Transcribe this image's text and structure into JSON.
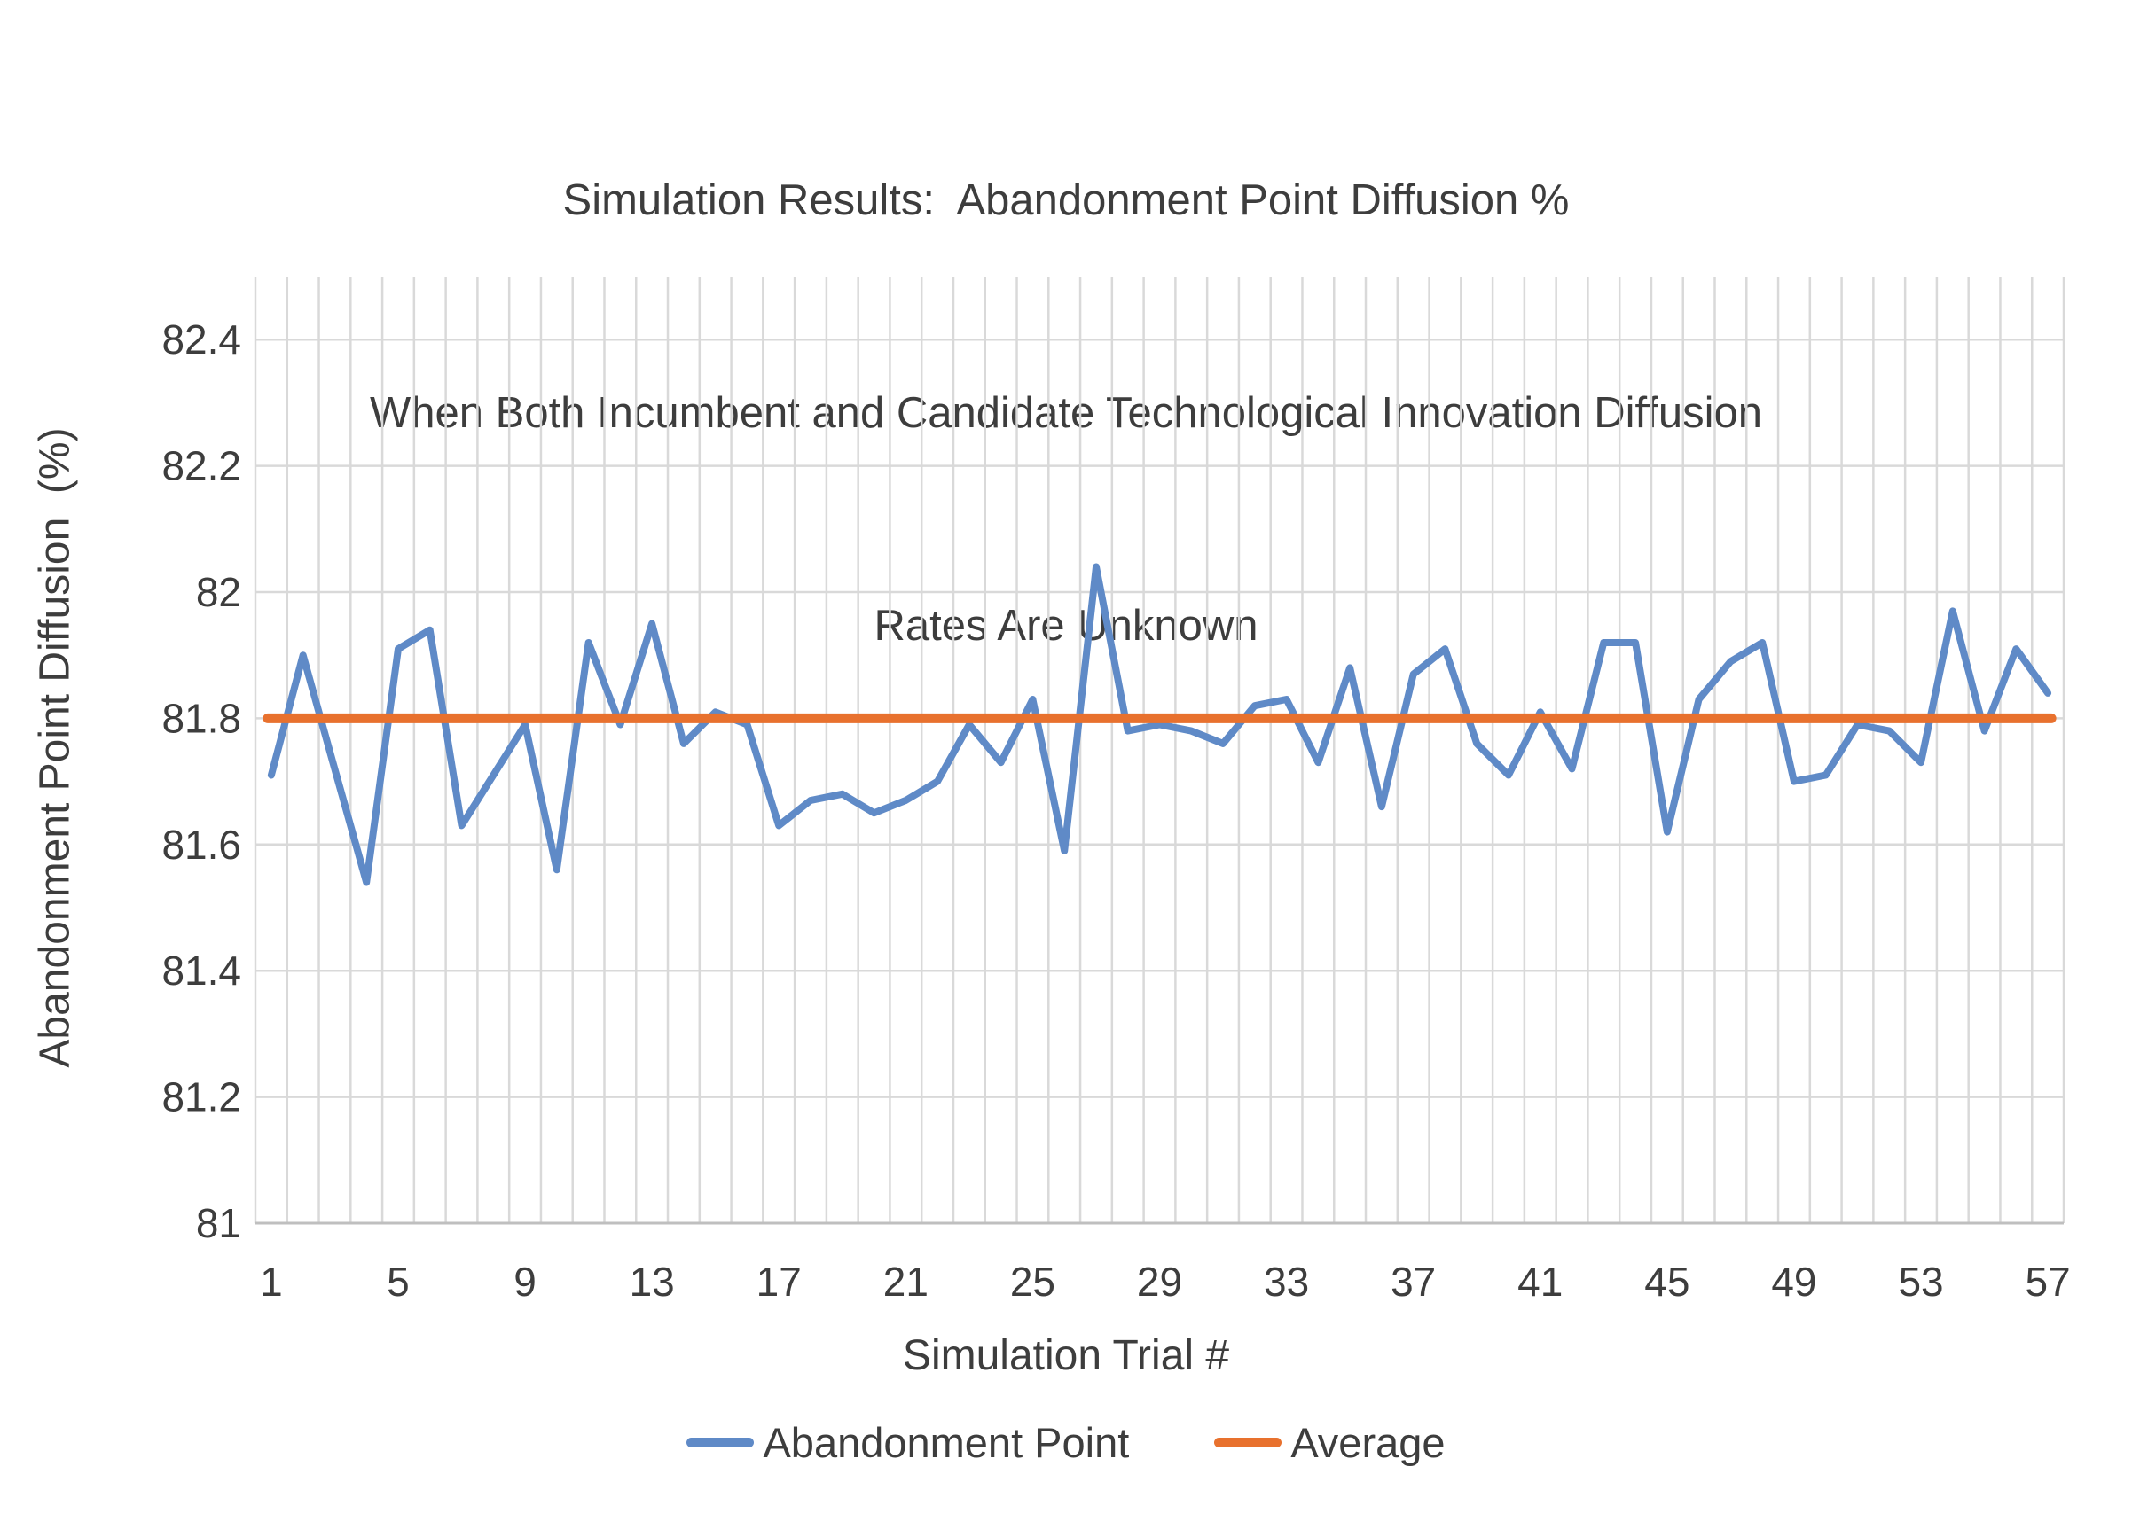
{
  "title_lines": [
    "Simulation Results:  Abandonment Point Diffusion %",
    "When Both Incumbent and Candidate Technological Innovation Diffusion",
    "Rates Are Unknown"
  ],
  "axis_titles": {
    "x": "Simulation Trial #",
    "y": "Abandonment Point Diffusion  (%)"
  },
  "legend": {
    "series1_label": "Abandonment Point",
    "series2_label": "Average"
  },
  "colors": {
    "series_blue": "#5F8AC7",
    "series_orange": "#E8712E",
    "gridline": "#D9D9D9",
    "axis_line": "#BFBFBF",
    "text": "#3D3D3D"
  },
  "chart_data": {
    "type": "line",
    "title": "Simulation Results: Abandonment Point Diffusion % When Both Incumbent and Candidate Technological Innovation Diffusion Rates Are Unknown",
    "xlabel": "Simulation Trial #",
    "ylabel": "Abandonment Point Diffusion (%)",
    "x": [
      1,
      2,
      3,
      4,
      5,
      6,
      7,
      8,
      9,
      10,
      11,
      12,
      13,
      14,
      15,
      16,
      17,
      18,
      19,
      20,
      21,
      22,
      23,
      24,
      25,
      26,
      27,
      28,
      29,
      30,
      31,
      32,
      33,
      34,
      35,
      36,
      37,
      38,
      39,
      40,
      41,
      42,
      43,
      44,
      45,
      46,
      47,
      48,
      49,
      50,
      51,
      52,
      53,
      54,
      55,
      56,
      57
    ],
    "series": [
      {
        "name": "Abandonment Point",
        "color": "#5F8AC7",
        "values": [
          81.71,
          81.9,
          81.72,
          81.54,
          81.91,
          81.94,
          81.63,
          81.71,
          81.79,
          81.56,
          81.92,
          81.79,
          81.95,
          81.76,
          81.81,
          81.79,
          81.63,
          81.67,
          81.68,
          81.65,
          81.67,
          81.7,
          81.79,
          81.73,
          81.83,
          81.59,
          82.04,
          81.78,
          81.79,
          81.78,
          81.76,
          81.82,
          81.83,
          81.73,
          81.88,
          81.66,
          81.87,
          81.91,
          81.76,
          81.71,
          81.81,
          81.72,
          81.92,
          81.92,
          81.62,
          81.83,
          81.89,
          81.92,
          81.7,
          81.71,
          81.79,
          81.78,
          81.73,
          81.97,
          81.78,
          81.91,
          81.84
        ]
      },
      {
        "name": "Average",
        "color": "#E8712E",
        "constant_value": 81.8
      }
    ],
    "ylim": [
      81,
      82.5
    ],
    "y_ticks": [
      "81",
      "81.2",
      "81.4",
      "81.6",
      "81.8",
      "82",
      "82.2",
      "82.4"
    ],
    "y_tick_values": [
      81,
      81.2,
      81.4,
      81.6,
      81.8,
      82,
      82.2,
      82.4
    ],
    "x_tick_labels": [
      "1",
      "5",
      "9",
      "13",
      "17",
      "21",
      "25",
      "29",
      "33",
      "37",
      "41",
      "45",
      "49",
      "53",
      "57"
    ],
    "x_tick_values": [
      1,
      5,
      9,
      13,
      17,
      21,
      25,
      29,
      33,
      37,
      41,
      45,
      49,
      53,
      57
    ],
    "grid": "both",
    "legend_position": "bottom"
  }
}
